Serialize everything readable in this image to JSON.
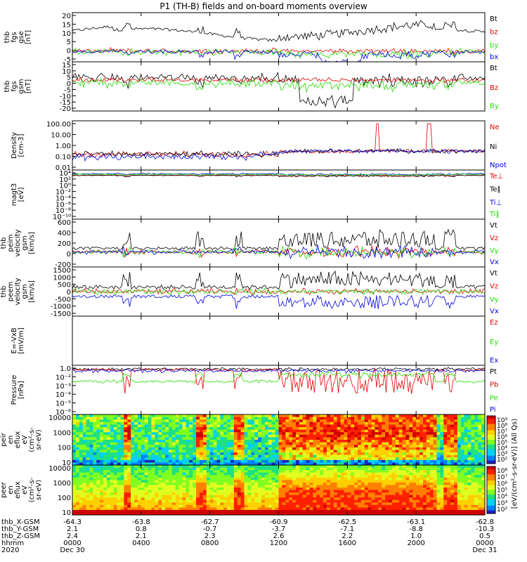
{
  "title": "P1  (TH-B) fields and on-board moments overview",
  "colors": {
    "black": "#000000",
    "red": "#e00000",
    "green": "#22dd00",
    "blue": "#0000e0",
    "axis": "#000000"
  },
  "chart_data": [
    {
      "type": "line",
      "ylabel": [
        "thb",
        "fgs",
        "gse",
        "[nT]"
      ],
      "ylim": [
        -5,
        20
      ],
      "yticks": [
        "20",
        "15",
        "10",
        "5",
        "0",
        "-5"
      ],
      "legend": [
        {
          "name": "Bt",
          "color": "black"
        },
        {
          "name": "bz",
          "color": "red"
        },
        {
          "name": "by",
          "color": "green"
        },
        {
          "name": "bx",
          "color": "blue"
        }
      ]
    },
    {
      "type": "line",
      "ylabel": [
        "thb",
        "fgs",
        "gsm",
        "[nT]"
      ],
      "ylim": [
        -20,
        15
      ],
      "yticks": [
        "15",
        "10",
        "5",
        "0",
        "-5",
        "-10",
        "-15",
        "-20"
      ],
      "legend": [
        {
          "name": "Bt",
          "color": "black"
        },
        {
          "name": "Bz",
          "color": "red"
        },
        {
          "name": "By",
          "color": "green"
        }
      ]
    },
    {
      "type": "line",
      "ylabel": [
        "Density",
        "[cm-3]"
      ],
      "scale": "log",
      "ylim": [
        0.003,
        300
      ],
      "yticks": [
        "100.00",
        "10.00",
        "1.00",
        "0.10",
        "0.01"
      ],
      "legend": [
        {
          "name": "Ne",
          "color": "red"
        },
        {
          "name": "Ni",
          "color": "black"
        },
        {
          "name": "Npot",
          "color": "blue"
        }
      ]
    },
    {
      "type": "line",
      "ylabel": [
        "magt3",
        "[eV]"
      ],
      "scale": "log",
      "yticks": [
        "10⁴",
        "10²",
        "10⁰",
        "10⁻²",
        "10⁻⁴",
        "10⁻⁶",
        "10⁻⁸",
        "10⁻¹⁰"
      ],
      "legend": [
        {
          "name": "Te⊥",
          "color": "red"
        },
        {
          "name": "Te∥",
          "color": "black"
        },
        {
          "name": "Ti⊥",
          "color": "blue"
        },
        {
          "name": "Ti∥",
          "color": "green"
        }
      ]
    },
    {
      "type": "line",
      "ylabel": [
        "thb",
        "peim",
        "velocity",
        "gsm",
        "[km/s]"
      ],
      "ylim": [
        -300,
        600
      ],
      "yticks": [
        "600",
        "400",
        "200",
        "0",
        "-200"
      ],
      "legend": [
        {
          "name": "Vt",
          "color": "black"
        },
        {
          "name": "Vz",
          "color": "red"
        },
        {
          "name": "Vy",
          "color": "green"
        },
        {
          "name": "Vx",
          "color": "blue"
        }
      ]
    },
    {
      "type": "line",
      "ylabel": [
        "thb",
        "peem",
        "velocity",
        "gsm",
        "[km/s]"
      ],
      "ylim": [
        -1500,
        1500
      ],
      "yticks": [
        "1500",
        "1000",
        "500",
        "0",
        "-500",
        "-1000",
        "-1500"
      ],
      "legend": [
        {
          "name": "Vt",
          "color": "black"
        },
        {
          "name": "Vz",
          "color": "red"
        },
        {
          "name": "Vy",
          "color": "green"
        },
        {
          "name": "Vx",
          "color": "blue"
        }
      ]
    },
    {
      "type": "line",
      "ylabel": [
        "E=-VxB",
        "[mV/m]"
      ],
      "yticks": [],
      "legend": [
        {
          "name": "Ez",
          "color": "red"
        },
        {
          "name": "Ey",
          "color": "green"
        },
        {
          "name": "Ex",
          "color": "blue"
        }
      ]
    },
    {
      "type": "line",
      "ylabel": [
        "Pressure",
        "[nPa]"
      ],
      "scale": "log",
      "yticks": [
        "1.0",
        "10⁻²",
        "10⁻³",
        "10⁻⁴",
        "10⁻⁵",
        "10⁻⁶"
      ],
      "legend": [
        {
          "name": "Pt",
          "color": "black"
        },
        {
          "name": "Pb",
          "color": "red"
        },
        {
          "name": "Pe",
          "color": "green"
        },
        {
          "name": "Pi",
          "color": "blue"
        }
      ]
    },
    {
      "type": "heatmap",
      "ylabel": [
        "thb",
        "peir",
        "en",
        "eflux",
        "eV",
        "(cm²-s-",
        "sr-eV)"
      ],
      "scale": "log",
      "yticks": [
        "10000",
        "1000",
        "100",
        "10"
      ],
      "colorbar": {
        "ticks": [
          "10⁹",
          "10⁸",
          "10⁷",
          "10⁶",
          "10⁵",
          "10⁴",
          "10³",
          "10²"
        ]
      }
    },
    {
      "type": "heatmap",
      "ylabel": [
        "thb",
        "peer",
        "en",
        "eflux",
        "eV",
        "(cm²-s-",
        "sr-eV)"
      ],
      "scale": "log",
      "yticks": [
        "10000",
        "1000",
        "100",
        "10"
      ],
      "colorbar": {
        "ticks": [
          "10⁸",
          "10⁷",
          "10⁶",
          "10⁵",
          "10⁴",
          "10³",
          "10²"
        ]
      }
    }
  ],
  "colorbar_label": "[eV/(cm²-s-sr-eV)] (All Qs)",
  "xaxis": {
    "rows": [
      {
        "label": "thb_X-GSM",
        "values": [
          "-64.3",
          "-63.8",
          "-62.7",
          "-60.9",
          "-62.5",
          "-63.1",
          "-62.8"
        ]
      },
      {
        "label": "thb_Y-GSM",
        "values": [
          "2.1",
          "0.8",
          "-0.7",
          "-3.7",
          "-7.1",
          "-8.8",
          "-10.3"
        ]
      },
      {
        "label": "thb_Z-GSM",
        "values": [
          "2.4",
          "2.1",
          "2.3",
          "2.6",
          "2.2",
          "1.0",
          "0.5"
        ]
      },
      {
        "label": "hhmm",
        "values": [
          "0000",
          "0400",
          "0800",
          "1200",
          "1600",
          "2000",
          "0000"
        ]
      },
      {
        "label": "2020",
        "values": [
          "Dec 30",
          "",
          "",
          "",
          "",
          "",
          "Dec 31"
        ]
      }
    ]
  }
}
